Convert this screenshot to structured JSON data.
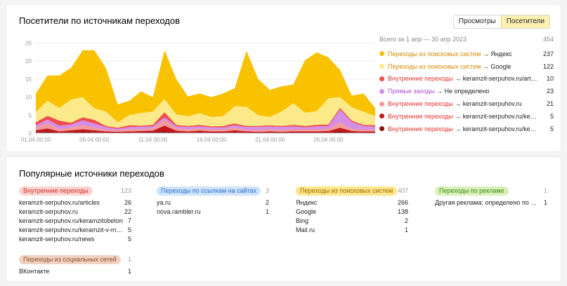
{
  "top_card": {
    "title": "Посетители по источникам переходов",
    "switch": {
      "views": "Просмотры",
      "visitors": "Посетители"
    },
    "legend": {
      "period": "Всего за 1 апр — 30 апр 2023",
      "total": "454",
      "items": [
        {
          "label": "Переходы из поисковых систем",
          "target": "Яндекс",
          "value": "237",
          "color": "#f8c200",
          "text_color": "#d68a00"
        },
        {
          "label": "Переходы из поисковых систем",
          "target": "Google",
          "value": "122",
          "color": "#fce98a",
          "text_color": "#d68a00"
        },
        {
          "label": "Внутренние переходы",
          "target": "keramzit-serpuhov.ru/articles",
          "value": "10",
          "color": "#f24c4c",
          "text_color": "#e0332e"
        },
        {
          "label": "Прямые заходы",
          "target": "Не определено",
          "value": "23",
          "color": "#d48ee8",
          "text_color": "#b24fd0"
        },
        {
          "label": "Внутренние переходы",
          "target": "keramzit-serpuhov.ru",
          "value": "21",
          "color": "#f49a9a",
          "text_color": "#e0332e"
        },
        {
          "label": "Внутренние переходы",
          "target": "keramzit-serpuhov.ru/keramzitobeton",
          "value": "5",
          "color": "#c4161c",
          "text_color": "#e0332e"
        },
        {
          "label": "Внутренние переходы",
          "target": "keramzit-serpuhov.ru/keramzit-v-meshkah",
          "value": "5",
          "color": "#8b0f13",
          "text_color": "#e0332e"
        }
      ]
    }
  },
  "chart_data": {
    "type": "area",
    "stacked": true,
    "x": [
      "01.04",
      "02.04",
      "03.04",
      "04.04",
      "05.04",
      "06.04",
      "07.04",
      "08.04",
      "09.04",
      "10.04",
      "11.04",
      "12.04",
      "13.04",
      "14.04",
      "15.04",
      "16.04",
      "17.04",
      "18.04",
      "19.04",
      "20.04",
      "21.04",
      "22.04",
      "23.04",
      "24.04",
      "25.04",
      "26.04",
      "27.04",
      "28.04",
      "29.04",
      "30.04"
    ],
    "x_tick_labels": [
      "01.04 00:00",
      "06.04 00:00",
      "11.04 00:00",
      "16.04 00:00",
      "21.04 00:00",
      "26.04 00:00"
    ],
    "y_ticks": [
      0,
      5,
      10,
      15,
      20,
      25
    ],
    "ylim": [
      0,
      27
    ],
    "series": [
      {
        "name": "Внутренние переходы → keramzit-serpuhov.ru/keramzit-v-meshkah",
        "color": "#8b0f13",
        "values": [
          0.3,
          0.5,
          0.2,
          0.3,
          0.5,
          0.3,
          0.2,
          0.2,
          0.2,
          0.3,
          0.3,
          0.6,
          0.3,
          0.2,
          0.3,
          0.2,
          0.2,
          0.3,
          0.2,
          0.2,
          0.2,
          0.2,
          0.2,
          0.2,
          0.2,
          0.2,
          0.6,
          0.3,
          0.2,
          0.2
        ]
      },
      {
        "name": "Внутренние переходы → keramzit-serpuhov.ru/keramzitobeton",
        "color": "#c4161c",
        "values": [
          0.5,
          0.8,
          0.3,
          0.5,
          0.6,
          0.5,
          0.3,
          0.2,
          0.3,
          0.3,
          0.4,
          1.5,
          0.4,
          0.3,
          0.4,
          0.3,
          0.3,
          0.5,
          0.3,
          0.2,
          0.3,
          0.2,
          0.3,
          0.3,
          0.3,
          0.4,
          0.9,
          0.3,
          0.3,
          0.3
        ]
      },
      {
        "name": "Внутренние переходы → keramzit-serpuhov.ru",
        "color": "#f49a9a",
        "values": [
          0.8,
          1.5,
          0.6,
          0.8,
          1.1,
          0.8,
          0.4,
          0.4,
          0.6,
          0.6,
          0.6,
          1.6,
          0.6,
          0.6,
          0.6,
          0.5,
          0.5,
          0.8,
          0.4,
          0.5,
          0.6,
          0.5,
          0.6,
          0.5,
          0.6,
          0.6,
          1.5,
          0.6,
          0.5,
          0.5
        ]
      },
      {
        "name": "Прямые заходы → Не определено",
        "color": "#d48ee8",
        "values": [
          0.6,
          1.0,
          1.0,
          0.8,
          1.4,
          1.1,
          0.8,
          0.4,
          0.6,
          0.6,
          0.6,
          0.7,
          0.6,
          0.6,
          0.6,
          0.6,
          0.6,
          0.6,
          0.8,
          0.8,
          0.8,
          0.8,
          0.8,
          0.6,
          0.8,
          0.8,
          3.5,
          1.9,
          1.0,
          0.8
        ]
      },
      {
        "name": "Внутренние переходы → keramzit-serpuhov.ru/articles",
        "color": "#f24c4c",
        "values": [
          0.8,
          1.0,
          1.4,
          0.5,
          0.8,
          1.0,
          0.3,
          0.3,
          0.5,
          0.3,
          0.4,
          1.4,
          0.4,
          0.3,
          0.4,
          0.3,
          0.4,
          0.5,
          0.3,
          0.3,
          0.3,
          0.3,
          0.4,
          0.4,
          0.4,
          0.4,
          0.5,
          0.4,
          0.3,
          0.4
        ]
      },
      {
        "name": "Переходы из поисковых систем → Google",
        "color": "#fce98a",
        "values": [
          2.9,
          4.2,
          3.5,
          6.4,
          5.6,
          3.2,
          4.0,
          1.5,
          2.8,
          3.5,
          3.7,
          3.7,
          2.9,
          2.7,
          3.2,
          2.6,
          2.7,
          4.8,
          5.3,
          3.0,
          2.3,
          4.0,
          6.0,
          3.7,
          3.8,
          7.3,
          3.0,
          3.7,
          3.7,
          2.5
        ]
      },
      {
        "name": "Переходы из поисковых систем → Яндекс",
        "color": "#f8c200",
        "values": [
          5.1,
          7.0,
          9.0,
          8.8,
          13.0,
          16.1,
          12.0,
          5.0,
          4.0,
          6.0,
          4.0,
          13.5,
          9.8,
          5.5,
          5.5,
          5.5,
          6.3,
          5.0,
          15.5,
          10.0,
          7.5,
          7.0,
          5.2,
          14.5,
          16.3,
          11.3,
          7.5,
          3.2,
          5.0,
          2.3
        ]
      }
    ]
  },
  "bottom_card": {
    "title": "Популярные источники переходов",
    "groups": [
      {
        "label": "Внутренние переходы",
        "total": "123",
        "bg": "#fbd3d0",
        "fg": "#d0302a",
        "rows": [
          [
            "keramzit-serpuhov.ru/articles",
            "26"
          ],
          [
            "keramzit-serpuhov.ru",
            "22"
          ],
          [
            "keramzit-serpuhov.ru/keramzitobeton",
            "7"
          ],
          [
            "keramzit-serpuhov.ru/keramzit-v-meshkah",
            "5"
          ],
          [
            "keramzit-serpuhov.ru/news",
            "5"
          ]
        ]
      },
      {
        "label": "Переходы по ссылкам на сайтах",
        "total": "3",
        "bg": "#cfe3fb",
        "fg": "#2b6fd0",
        "rows": [
          [
            "ya.ru",
            "2"
          ],
          [
            "nova.rambler.ru",
            "1"
          ]
        ]
      },
      {
        "label": "Переходы из поисковых систем",
        "total": "407",
        "bg": "#fde58a",
        "fg": "#9a6a00",
        "rows": [
          [
            "Яндекс",
            "266"
          ],
          [
            "Google",
            "138"
          ],
          [
            "Bing",
            "2"
          ],
          [
            "Mail.ru",
            "1"
          ]
        ]
      },
      {
        "label": "Переходы по рекламе",
        "total": "1",
        "bg": "#d8f0b8",
        "fg": "#3d8a16",
        "rows": [
          [
            "Другая реклама: определено по меткам",
            "1"
          ]
        ]
      },
      {
        "label": "Переходы из социальных сетей",
        "total": "1",
        "bg": "#f1d2c2",
        "fg": "#8b4a2b",
        "rows": [
          [
            "ВКонтакте",
            "1"
          ]
        ]
      }
    ]
  }
}
